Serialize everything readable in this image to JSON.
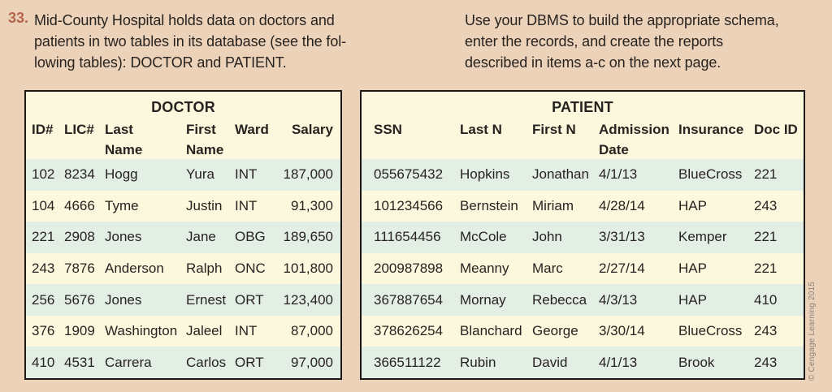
{
  "problem": {
    "number": "33.",
    "left_lines": [
      "Mid-County Hospital holds data on doctors and",
      "patients in two tables in its database (see the fol-",
      "lowing tables): DOCTOR and PATIENT."
    ],
    "right_lines": [
      "Use your DBMS to build the appropriate schema,",
      "enter the records, and create the reports",
      "described in items a-c on the next page."
    ]
  },
  "doctor_table": {
    "title": "DOCTOR",
    "columns": [
      "ID#",
      "LIC#",
      "Last\nName",
      "First\nName",
      "Ward",
      "Salary"
    ],
    "rows": [
      [
        "102",
        "8234",
        "Hogg",
        "Yura",
        "INT",
        "187,000"
      ],
      [
        "104",
        "4666",
        "Tyme",
        "Justin",
        "INT",
        "91,300"
      ],
      [
        "221",
        "2908",
        "Jones",
        "Jane",
        "OBG",
        "189,650"
      ],
      [
        "243",
        "7876",
        "Anderson",
        "Ralph",
        "ONC",
        "101,800"
      ],
      [
        "256",
        "5676",
        "Jones",
        "Ernest",
        "ORT",
        "123,400"
      ],
      [
        "376",
        "1909",
        "Washington",
        "Jaleel",
        "INT",
        "87,000"
      ],
      [
        "410",
        "4531",
        "Carrera",
        "Carlos",
        "ORT",
        "97,000"
      ]
    ]
  },
  "patient_table": {
    "title": "PATIENT",
    "columns": [
      "SSN",
      "Last N",
      "First N",
      "Admission\nDate",
      "Insurance",
      "Doc ID"
    ],
    "rows": [
      [
        "055675432",
        "Hopkins",
        "Jonathan",
        "4/1/13",
        "BlueCross",
        "221"
      ],
      [
        "101234566",
        "Bernstein",
        "Miriam",
        "4/28/14",
        "HAP",
        "243"
      ],
      [
        "111654456",
        "McCole",
        "John",
        "3/31/13",
        "Kemper",
        "221"
      ],
      [
        "200987898",
        "Meanny",
        "Marc",
        "2/27/14",
        "HAP",
        "221"
      ],
      [
        "367887654",
        "Mornay",
        "Rebecca",
        "4/3/13",
        "HAP",
        "410"
      ],
      [
        "378626254",
        "Blanchard",
        "George",
        "3/30/14",
        "BlueCross",
        "243"
      ],
      [
        "366511122",
        "Rubin",
        "David",
        "4/1/13",
        "Brook",
        "243"
      ]
    ]
  },
  "credit": "© Cengage Learning 2015",
  "colors": {
    "page_background": "#ecd2b8",
    "table_cream": "#fbf8dd",
    "table_green": "#e3eee4",
    "border": "#1c1a19",
    "text": "#272320",
    "problem_number": "#b4664d",
    "credit_text": "#8a837c"
  }
}
